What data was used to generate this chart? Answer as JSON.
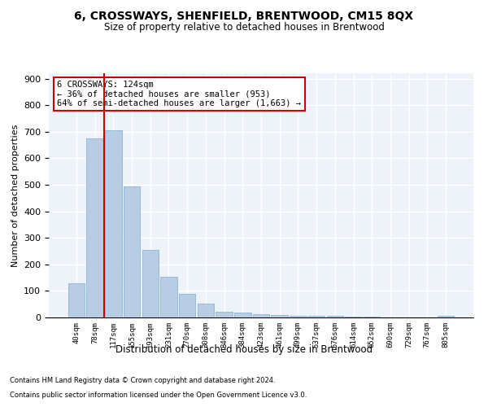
{
  "title": "6, CROSSWAYS, SHENFIELD, BRENTWOOD, CM15 8QX",
  "subtitle": "Size of property relative to detached houses in Brentwood",
  "xlabel": "Distribution of detached houses by size in Brentwood",
  "ylabel": "Number of detached properties",
  "bar_color": "#b8cce4",
  "bar_edge_color": "#7bafd4",
  "background_color": "#eef3f9",
  "grid_color": "#ffffff",
  "bin_labels": [
    "40sqm",
    "78sqm",
    "117sqm",
    "155sqm",
    "193sqm",
    "231sqm",
    "270sqm",
    "308sqm",
    "346sqm",
    "384sqm",
    "423sqm",
    "461sqm",
    "499sqm",
    "537sqm",
    "576sqm",
    "614sqm",
    "652sqm",
    "690sqm",
    "729sqm",
    "767sqm",
    "805sqm"
  ],
  "bar_heights": [
    130,
    675,
    705,
    495,
    255,
    152,
    90,
    52,
    22,
    18,
    11,
    9,
    7,
    5,
    5,
    4,
    2,
    1,
    1,
    1,
    6
  ],
  "ylim": [
    0,
    920
  ],
  "yticks": [
    0,
    100,
    200,
    300,
    400,
    500,
    600,
    700,
    800,
    900
  ],
  "property_label": "6 CROSSWAYS: 124sqm",
  "annotation_line1": "← 36% of detached houses are smaller (953)",
  "annotation_line2": "64% of semi-detached houses are larger (1,663) →",
  "vline_x_index": 2,
  "footer_line1": "Contains HM Land Registry data © Crown copyright and database right 2024.",
  "footer_line2": "Contains public sector information licensed under the Open Government Licence v3.0.",
  "annotation_box_color": "#ffffff",
  "annotation_border_color": "#cc0000",
  "vline_color": "#cc0000",
  "title_fontsize": 10,
  "subtitle_fontsize": 8.5
}
